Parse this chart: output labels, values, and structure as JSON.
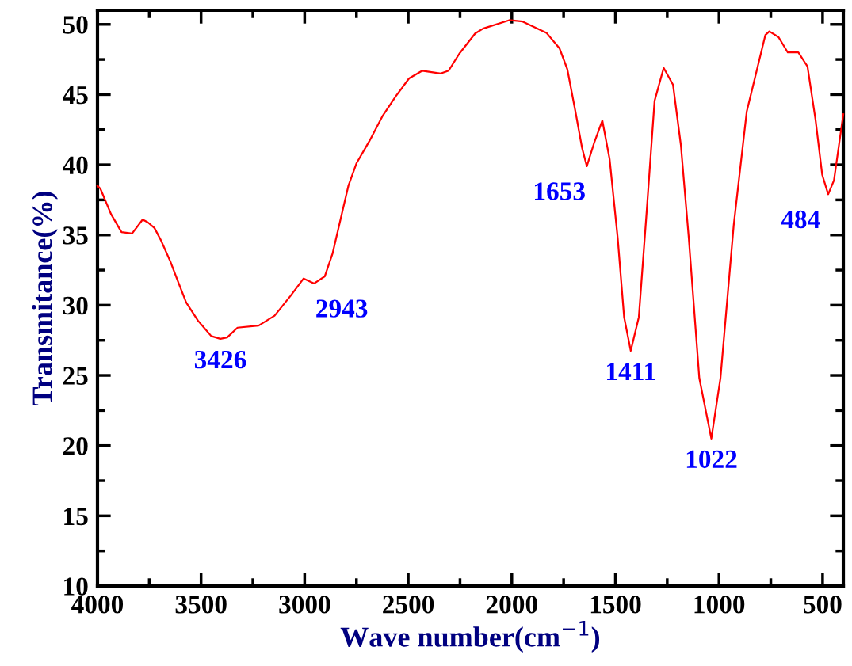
{
  "chart_data": {
    "type": "line",
    "xlabel": "Wave number(cm$^{−1}$)",
    "ylabel": "Transmitance(%)",
    "xlim": [
      4000,
      400
    ],
    "ylim": [
      10,
      51
    ],
    "xticks": [
      4000,
      3500,
      3000,
      2500,
      2000,
      1500,
      1000,
      500
    ],
    "yticks": [
      10,
      15,
      20,
      25,
      30,
      35,
      40,
      45,
      50
    ],
    "grid": false,
    "legend": false,
    "color": "#ff0000",
    "x": [
      4000,
      3986,
      3935,
      3884,
      3833,
      3782,
      3757,
      3725,
      3693,
      3648,
      3617,
      3572,
      3515,
      3451,
      3407,
      3374,
      3324,
      3222,
      3145,
      3069,
      3005,
      2954,
      2903,
      2865,
      2827,
      2789,
      2750,
      2687,
      2623,
      2559,
      2496,
      2432,
      2343,
      2305,
      2254,
      2177,
      2139,
      2012,
      1948,
      1833,
      1770,
      1732,
      1693,
      1661,
      1638,
      1604,
      1563,
      1528,
      1489,
      1458,
      1426,
      1387,
      1349,
      1311,
      1267,
      1222,
      1184,
      1146,
      1095,
      1037,
      993,
      929,
      866,
      776,
      757,
      713,
      668,
      617,
      573,
      534,
      502,
      473,
      445,
      400
    ],
    "values": [
      38.5,
      38.3,
      36.5,
      35.2,
      35.1,
      36.1,
      35.9,
      35.5,
      34.6,
      33.1,
      31.9,
      30.2,
      28.9,
      27.8,
      27.6,
      27.7,
      28.4,
      28.55,
      29.25,
      30.65,
      31.9,
      31.55,
      32.05,
      33.7,
      36.1,
      38.5,
      40.1,
      41.7,
      43.5,
      44.9,
      46.15,
      46.7,
      46.5,
      46.7,
      47.9,
      49.35,
      49.7,
      50.3,
      50.2,
      49.4,
      48.3,
      46.8,
      43.8,
      41.2,
      39.9,
      41.5,
      43.15,
      40.4,
      34.8,
      29.15,
      26.75,
      29.15,
      36.7,
      44.55,
      46.9,
      45.7,
      41.4,
      34.8,
      24.8,
      20.5,
      24.8,
      35.7,
      43.8,
      49.25,
      49.5,
      49.1,
      48.0,
      48.0,
      47.0,
      43.2,
      39.3,
      37.9,
      38.9,
      43.6
    ],
    "annotations": [
      {
        "text": "3426",
        "x": 3407,
        "y": 27.6
      },
      {
        "text": "2943",
        "x": 2954,
        "y": 31.55
      },
      {
        "text": "1653",
        "x": 1638,
        "y": 39.9
      },
      {
        "text": "1411",
        "x": 1426,
        "y": 26.75
      },
      {
        "text": "1022",
        "x": 1037,
        "y": 20.5
      },
      {
        "text": "484",
        "x": 473,
        "y": 37.9
      }
    ]
  }
}
